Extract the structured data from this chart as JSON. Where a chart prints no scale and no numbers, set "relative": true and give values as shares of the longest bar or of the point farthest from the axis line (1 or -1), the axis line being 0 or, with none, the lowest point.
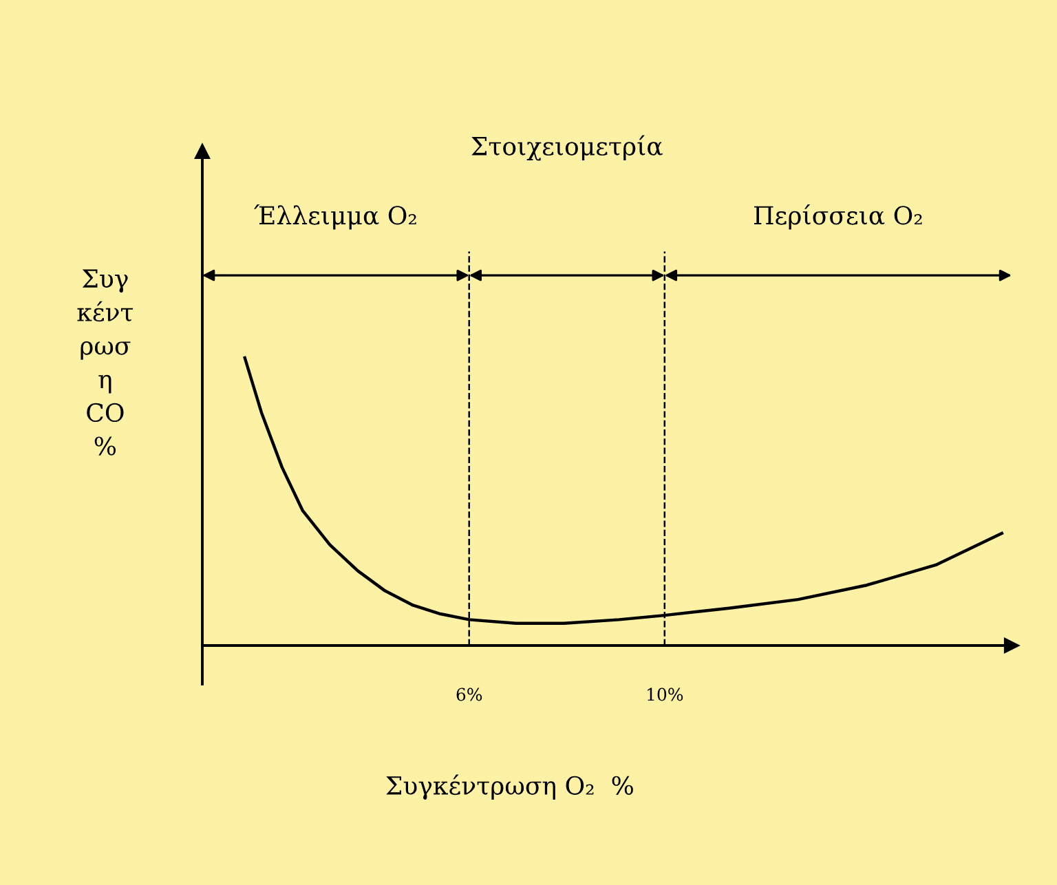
{
  "chart_data": {
    "type": "line",
    "relative": true,
    "xlabel": "Συγκέντρωση O₂  %",
    "ylabel": "Συγ\nκέντ\nρωσ\nη\nCO\n%",
    "x": [
      1.41,
      1.75,
      2.17,
      2.59,
      3.15,
      3.72,
      4.28,
      4.85,
      5.41,
      6,
      6.96,
      7.94,
      9.07,
      10,
      11.32,
      12.73,
      14.14,
      15.55,
      16.9
    ],
    "series": [
      {
        "color": "#000000",
        "values": [
          1.0,
          0.81,
          0.62,
          0.47,
          0.35,
          0.26,
          0.19,
          0.14,
          0.11,
          0.09,
          0.077,
          0.077,
          0.09,
          0.105,
          0.13,
          0.16,
          0.21,
          0.28,
          0.39
        ]
      }
    ],
    "xlim": [
      0.54,
      17.1
    ],
    "xticks": [
      {
        "value": 6,
        "label": "6%"
      },
      {
        "value": 10,
        "label": "10%"
      }
    ],
    "ref_lines": [
      {
        "axis": "x",
        "value": 6,
        "line_style": "dashed",
        "color": "#000000"
      },
      {
        "axis": "x",
        "value": 10,
        "line_style": "dashed",
        "color": "#000000"
      }
    ],
    "annotations": [
      "Έλλειμμα O₂",
      "Στοιχειομετρία",
      "Περίσσεια O₂"
    ],
    "grid": false,
    "marker": "none",
    "line_style": "solid"
  }
}
